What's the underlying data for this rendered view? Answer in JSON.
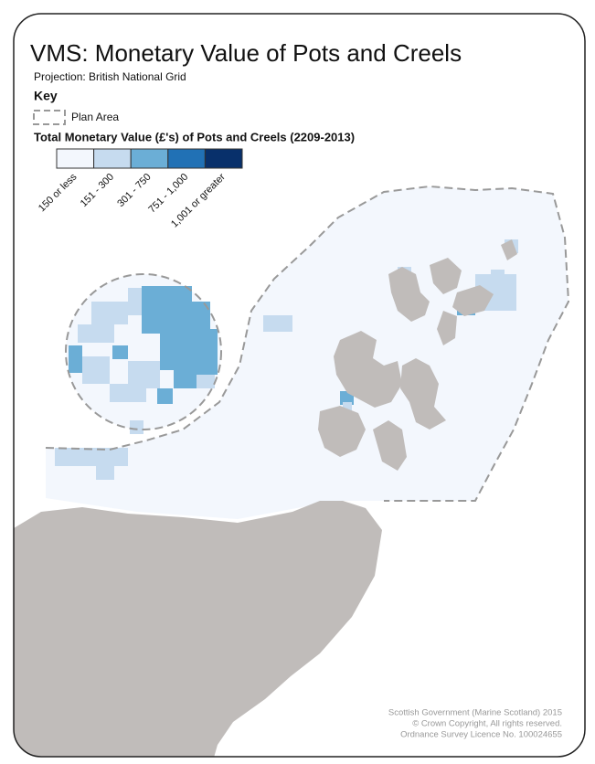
{
  "header": {
    "title": "VMS: Monetary Value of Pots and Creels",
    "projection": "Projection: British National Grid"
  },
  "key": {
    "heading": "Key",
    "plan_area": "Plan Area",
    "legend_title": "Total Monetary Value (£'s) of Pots and Creels (2209-2013)",
    "classes": [
      {
        "label": "150 or less",
        "color": "#f3f7fd"
      },
      {
        "label": "151 - 300",
        "color": "#c6dbef"
      },
      {
        "label": "301 - 750",
        "color": "#6baed6"
      },
      {
        "label": "751 - 1,000",
        "color": "#2171b5"
      },
      {
        "label": "1,001 or greater",
        "color": "#08306b"
      }
    ]
  },
  "footer": {
    "lines": [
      "Scottish Government (Marine Scotland) 2015",
      "© Crown Copyright, All rights reserved.",
      "Ordnance Survey Licence No. 100024655"
    ]
  }
}
